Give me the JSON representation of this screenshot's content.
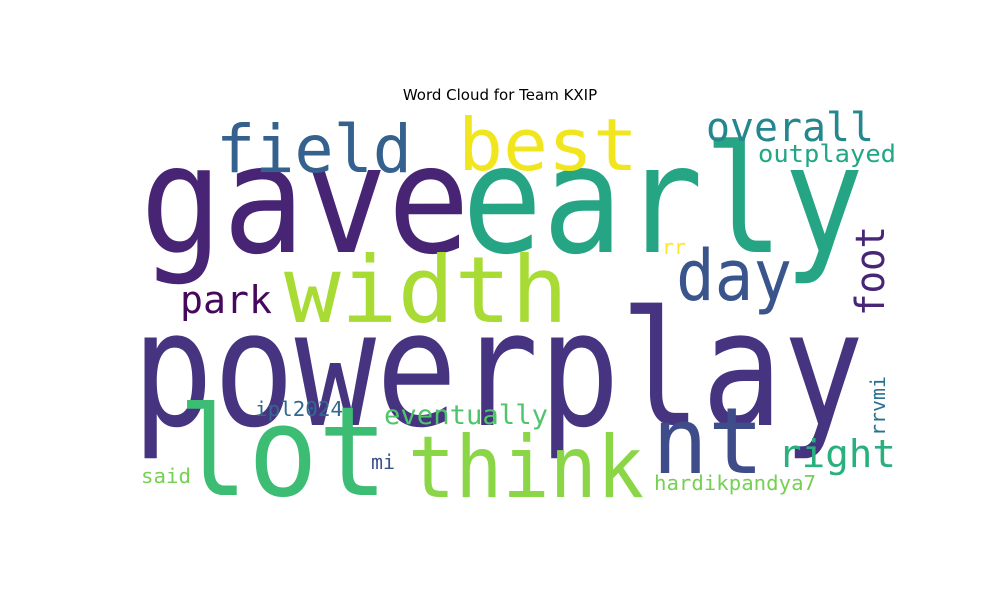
{
  "title": "Word Cloud for Team KXIP",
  "words": [
    {
      "text": "powerplay",
      "color": "#463480"
    },
    {
      "text": "gave",
      "color": "#482475"
    },
    {
      "text": "early",
      "color": "#25a584"
    },
    {
      "text": "width",
      "color": "#a8db34"
    },
    {
      "text": "lot",
      "color": "#3dbc74"
    },
    {
      "text": "think",
      "color": "#8bd646"
    },
    {
      "text": "nt",
      "color": "#3e4c8a"
    },
    {
      "text": "best",
      "color": "#f1e51d"
    },
    {
      "text": "field",
      "color": "#34618d"
    },
    {
      "text": "day",
      "color": "#39558c"
    },
    {
      "text": "overall",
      "color": "#24878e"
    },
    {
      "text": "foot",
      "color": "#482677"
    },
    {
      "text": "park",
      "color": "#46085c"
    },
    {
      "text": "right",
      "color": "#2ab07f"
    },
    {
      "text": "eventually",
      "color": "#50c46a"
    },
    {
      "text": "outplayed",
      "color": "#22a785"
    },
    {
      "text": "ipl2024",
      "color": "#31688e"
    },
    {
      "text": "hardikpandya7",
      "color": "#75d054"
    },
    {
      "text": "rrvmi",
      "color": "#2c728e"
    },
    {
      "text": "said",
      "color": "#75d054"
    },
    {
      "text": "mi",
      "color": "#3b528b"
    },
    {
      "text": "rr",
      "color": "#fde725"
    }
  ]
}
